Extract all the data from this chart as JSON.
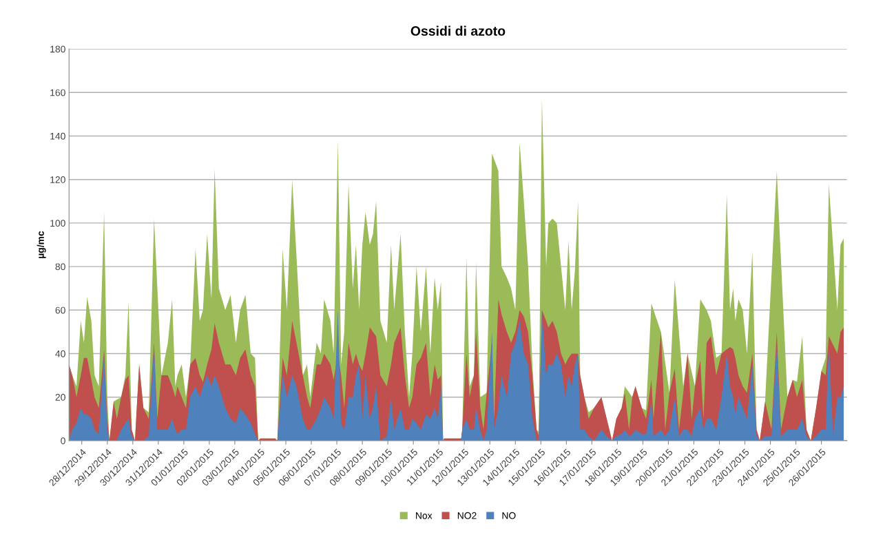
{
  "chart_data": {
    "type": "area",
    "title": "Ossidi di azoto",
    "ylabel": "µg/mc",
    "x": [
      "2014-12-28T00:00",
      "2014-12-28T03:00",
      "2014-12-28T07:00",
      "2014-12-28T11:00",
      "2014-12-28T14:00",
      "2014-12-28T17:00",
      "2014-12-28T21:00",
      "2014-12-29T00:00",
      "2014-12-29T04:00",
      "2014-12-29T09:00",
      "2014-12-29T12:00",
      "2014-12-29T14:00",
      "2014-12-29T18:00",
      "2014-12-29T21:00",
      "2014-12-30T01:00",
      "2014-12-30T05:00",
      "2014-12-30T08:00",
      "2014-12-30T11:00",
      "2014-12-30T14:00",
      "2014-12-30T18:00",
      "2014-12-30T22:00",
      "2014-12-31T03:00",
      "2014-12-31T08:00",
      "2014-12-31T11:00",
      "2014-12-31T15:00",
      "2014-12-31T21:00",
      "2015-01-01T01:00",
      "2015-01-01T04:00",
      "2015-01-01T06:00",
      "2015-01-01T10:00",
      "2015-01-01T14:00",
      "2015-01-01T18:00",
      "2015-01-01T23:00",
      "2015-01-02T03:00",
      "2015-01-02T06:00",
      "2015-01-02T10:00",
      "2015-01-02T14:00",
      "2015-01-02T17:00",
      "2015-01-02T21:00",
      "2015-01-03T03:00",
      "2015-01-03T08:00",
      "2015-01-03T13:00",
      "2015-01-03T17:00",
      "2015-01-03T22:00",
      "2015-01-04T03:00",
      "2015-01-04T07:00",
      "2015-01-04T10:00",
      "2015-01-04T12:00",
      "2015-01-05T02:00",
      "2015-01-05T04:00",
      "2015-01-05T09:00",
      "2015-01-05T13:00",
      "2015-01-05T18:00",
      "2015-01-05T22:00",
      "2015-01-06T04:00",
      "2015-01-06T08:00",
      "2015-01-06T11:00",
      "2015-01-06T17:00",
      "2015-01-06T21:00",
      "2015-01-07T00:00",
      "2015-01-07T06:00",
      "2015-01-07T09:00",
      "2015-01-07T13:00",
      "2015-01-07T16:00",
      "2015-01-07T19:00",
      "2015-01-07T23:00",
      "2015-01-08T03:00",
      "2015-01-08T06:00",
      "2015-01-08T09:00",
      "2015-01-08T12:00",
      "2015-01-08T15:00",
      "2015-01-08T19:00",
      "2015-01-08T22:00",
      "2015-01-09T01:00",
      "2015-01-09T05:00",
      "2015-01-09T11:00",
      "2015-01-09T15:00",
      "2015-01-09T18:00",
      "2015-01-10T00:00",
      "2015-01-10T04:00",
      "2015-01-10T08:00",
      "2015-01-10T11:00",
      "2015-01-10T15:00",
      "2015-01-10T19:00",
      "2015-01-11T00:00",
      "2015-01-11T04:00",
      "2015-01-11T08:00",
      "2015-01-11T11:00",
      "2015-01-11T14:00",
      "2015-01-11T16:00",
      "2015-01-11T17:00",
      "2015-01-12T09:00",
      "2015-01-12T10:00",
      "2015-01-12T14:00",
      "2015-01-12T17:00",
      "2015-01-12T21:00",
      "2015-01-12T23:00",
      "2015-01-13T03:00",
      "2015-01-13T06:00",
      "2015-01-13T09:00",
      "2015-01-13T14:00",
      "2015-01-13T16:00",
      "2015-01-13T20:00",
      "2015-01-13T23:00",
      "2015-01-14T04:00",
      "2015-01-14T08:00",
      "2015-01-14T12:00",
      "2015-01-14T16:00",
      "2015-01-14T20:00",
      "2015-01-15T00:00",
      "2015-01-15T04:00",
      "2015-01-15T08:00",
      "2015-01-15T10:00",
      "2015-01-15T13:00",
      "2015-01-15T17:00",
      "2015-01-15T19:00",
      "2015-01-15T23:00",
      "2015-01-16T03:00",
      "2015-01-16T07:00",
      "2015-01-16T11:00",
      "2015-01-16T14:00",
      "2015-01-16T17:00",
      "2015-01-16T20:00",
      "2015-01-16T23:00",
      "2015-01-17T01:00",
      "2015-01-17T05:00",
      "2015-01-17T09:00",
      "2015-01-17T14:00",
      "2015-01-17T21:00",
      "2015-01-18T02:00",
      "2015-01-18T07:00",
      "2015-01-18T11:00",
      "2015-01-18T16:00",
      "2015-01-18T19:00",
      "2015-01-18T23:00",
      "2015-01-19T02:00",
      "2015-01-19T05:00",
      "2015-01-19T11:00",
      "2015-01-19T15:00",
      "2015-01-19T20:00",
      "2015-01-19T22:00",
      "2015-01-20T05:00",
      "2015-01-20T09:00",
      "2015-01-20T13:00",
      "2015-01-20T18:00",
      "2015-01-20T22:00",
      "2015-01-21T02:00",
      "2015-01-21T06:00",
      "2015-01-21T10:00",
      "2015-01-21T13:00",
      "2015-01-21T18:00",
      "2015-01-21T21:00",
      "2015-01-22T00:00",
      "2015-01-22T04:00",
      "2015-01-22T09:00",
      "2015-01-22T14:00",
      "2015-01-22T19:00",
      "2015-01-22T22:00",
      "2015-01-23T01:00",
      "2015-01-23T03:00",
      "2015-01-23T06:00",
      "2015-01-23T10:00",
      "2015-01-23T14:00",
      "2015-01-23T19:00",
      "2015-01-23T23:00",
      "2015-01-24T02:00",
      "2015-01-24T07:00",
      "2015-01-24T13:00",
      "2015-01-24T18:00",
      "2015-01-24T22:00",
      "2015-01-25T04:00",
      "2015-01-25T09:00",
      "2015-01-25T13:00",
      "2015-01-25T18:00",
      "2015-01-25T22:00",
      "2015-01-26T02:00",
      "2015-01-26T07:00",
      "2015-01-26T12:00",
      "2015-01-26T16:00",
      "2015-01-26T19:00",
      "2015-01-26T23:00",
      "2015-01-27T03:00",
      "2015-01-27T06:00",
      "2015-01-27T09:00"
    ],
    "series": [
      {
        "name": "Nox",
        "color": "#9bbb59",
        "values": [
          35,
          30,
          25,
          55,
          45,
          66,
          55,
          30,
          25,
          105,
          20,
          0,
          18,
          null,
          20,
          30,
          64,
          5,
          0,
          35,
          15,
          13,
          102,
          null,
          30,
          45,
          65,
          25,
          30,
          35,
          20,
          35,
          88,
          55,
          60,
          95,
          65,
          125,
          70,
          60,
          67,
          45,
          60,
          67,
          40,
          38,
          0,
          1,
          1,
          0,
          88,
          60,
          120,
          85,
          30,
          35,
          20,
          45,
          40,
          65,
          55,
          40,
          138,
          35,
          50,
          118,
          70,
          90,
          60,
          90,
          105,
          90,
          95,
          110,
          55,
          45,
          90,
          60,
          95,
          50,
          20,
          40,
          80,
          50,
          80,
          40,
          75,
          60,
          73,
          0,
          1,
          1,
          5,
          84,
          25,
          30,
          82,
          20,
          null,
          22,
          132,
          null,
          124,
          80,
          75,
          70,
          60,
          137,
          110,
          80,
          35,
          5,
          4,
          157,
          80,
          100,
          102,
          100,
          80,
          60,
          92,
          60,
          78,
          110,
          30,
          20,
          13,
          15,
          20,
          10,
          0,
          10,
          15,
          25,
          null,
          20,
          25,
          15,
          14,
          63,
          null,
          50,
          null,
          22,
          74,
          null,
          25,
          40,
          null,
          25,
          65,
          null,
          60,
          55,
          38,
          40,
          113,
          60,
          70,
          55,
          65,
          60,
          40,
          87,
          5,
          0,
          18,
          null,
          124,
          null,
          20,
          28,
          27,
          48,
          5,
          0,
          15,
          32,
          38,
          118,
          null,
          60,
          90,
          93
        ]
      },
      {
        "name": "NO2",
        "color": "#c0504d",
        "values": [
          35,
          30,
          20,
          30,
          38,
          38,
          28,
          20,
          15,
          42,
          10,
          0,
          18,
          10,
          20,
          28,
          30,
          5,
          0,
          35,
          15,
          10,
          45,
          10,
          30,
          30,
          25,
          20,
          25,
          20,
          15,
          35,
          38,
          30,
          27,
          35,
          42,
          54,
          45,
          35,
          35,
          30,
          38,
          42,
          30,
          25,
          0,
          1,
          1,
          0,
          38,
          30,
          55,
          45,
          30,
          20,
          15,
          35,
          35,
          40,
          35,
          28,
          40,
          30,
          15,
          45,
          35,
          40,
          35,
          32,
          40,
          52,
          50,
          48,
          30,
          25,
          35,
          45,
          52,
          30,
          15,
          20,
          35,
          38,
          45,
          20,
          35,
          28,
          30,
          0,
          1,
          1,
          5,
          40,
          20,
          30,
          50,
          15,
          5,
          22,
          45,
          10,
          65,
          58,
          50,
          45,
          50,
          60,
          57,
          50,
          30,
          5,
          2,
          60,
          55,
          52,
          55,
          50,
          40,
          35,
          38,
          40,
          40,
          40,
          30,
          20,
          10,
          15,
          20,
          10,
          0,
          10,
          15,
          22,
          5,
          20,
          25,
          15,
          10,
          28,
          10,
          50,
          5,
          22,
          33,
          5,
          22,
          40,
          10,
          25,
          37,
          10,
          45,
          48,
          30,
          40,
          42,
          43,
          42,
          38,
          30,
          25,
          22,
          40,
          5,
          0,
          18,
          5,
          50,
          5,
          20,
          28,
          20,
          28,
          5,
          0,
          15,
          32,
          30,
          48,
          null,
          40,
          50,
          52
        ]
      },
      {
        "name": "NO",
        "color": "#4f81bd",
        "values": [
          0,
          5,
          8,
          15,
          12,
          12,
          10,
          5,
          3,
          40,
          5,
          0,
          0,
          0,
          5,
          8,
          10,
          2,
          0,
          0,
          0,
          2,
          44,
          5,
          5,
          5,
          10,
          5,
          3,
          5,
          5,
          20,
          25,
          20,
          25,
          30,
          25,
          30,
          25,
          15,
          10,
          8,
          15,
          12,
          8,
          3,
          0,
          0,
          0,
          0,
          30,
          20,
          30,
          25,
          10,
          5,
          5,
          10,
          15,
          20,
          15,
          10,
          60,
          8,
          5,
          20,
          20,
          30,
          35,
          10,
          30,
          10,
          15,
          25,
          0,
          2,
          20,
          5,
          15,
          5,
          5,
          10,
          8,
          5,
          12,
          10,
          15,
          10,
          25,
          0,
          0,
          0,
          5,
          10,
          5,
          5,
          15,
          5,
          0,
          5,
          50,
          5,
          15,
          30,
          20,
          40,
          45,
          55,
          40,
          35,
          10,
          0,
          0,
          60,
          30,
          35,
          35,
          40,
          35,
          20,
          30,
          25,
          35,
          40,
          5,
          5,
          2,
          0,
          5,
          2,
          0,
          2,
          3,
          5,
          2,
          3,
          5,
          3,
          3,
          18,
          2,
          5,
          2,
          5,
          20,
          2,
          5,
          5,
          2,
          10,
          15,
          5,
          10,
          10,
          5,
          20,
          40,
          25,
          20,
          12,
          20,
          15,
          10,
          35,
          2,
          0,
          2,
          2,
          45,
          2,
          5,
          5,
          5,
          10,
          2,
          0,
          2,
          5,
          5,
          45,
          2,
          20,
          20,
          25
        ]
      }
    ],
    "xlim": [
      "2014-12-28T00:00",
      "2015-01-27T12:00"
    ],
    "xticks": [
      {
        "value": "2014-12-28T12:00",
        "label": "28/12/2014"
      },
      {
        "value": "2014-12-29T12:00",
        "label": "29/12/2014"
      },
      {
        "value": "2014-12-30T12:00",
        "label": "30/12/2014"
      },
      {
        "value": "2014-12-31T12:00",
        "label": "31/12/2014"
      },
      {
        "value": "2015-01-01T12:00",
        "label": "01/01/2015"
      },
      {
        "value": "2015-01-02T12:00",
        "label": "02/01/2015"
      },
      {
        "value": "2015-01-03T12:00",
        "label": "03/01/2015"
      },
      {
        "value": "2015-01-04T12:00",
        "label": "04/01/2015"
      },
      {
        "value": "2015-01-05T12:00",
        "label": "05/01/2015"
      },
      {
        "value": "2015-01-06T12:00",
        "label": "06/01/2015"
      },
      {
        "value": "2015-01-07T12:00",
        "label": "07/01/2015"
      },
      {
        "value": "2015-01-08T12:00",
        "label": "08/01/2015"
      },
      {
        "value": "2015-01-09T12:00",
        "label": "09/01/2015"
      },
      {
        "value": "2015-01-10T12:00",
        "label": "10/01/2015"
      },
      {
        "value": "2015-01-11T12:00",
        "label": "11/01/2015"
      },
      {
        "value": "2015-01-12T12:00",
        "label": "12/01/2015"
      },
      {
        "value": "2015-01-13T12:00",
        "label": "13/01/2015"
      },
      {
        "value": "2015-01-14T12:00",
        "label": "14/01/2015"
      },
      {
        "value": "2015-01-15T12:00",
        "label": "15/01/2015"
      },
      {
        "value": "2015-01-16T12:00",
        "label": "16/01/2015"
      },
      {
        "value": "2015-01-17T12:00",
        "label": "17/01/2015"
      },
      {
        "value": "2015-01-18T12:00",
        "label": "18/01/2015"
      },
      {
        "value": "2015-01-19T12:00",
        "label": "19/01/2015"
      },
      {
        "value": "2015-01-20T12:00",
        "label": "20/01/2015"
      },
      {
        "value": "2015-01-21T12:00",
        "label": "21/01/2015"
      },
      {
        "value": "2015-01-22T12:00",
        "label": "22/01/2015"
      },
      {
        "value": "2015-01-23T12:00",
        "label": "23/01/2015"
      },
      {
        "value": "2015-01-24T12:00",
        "label": "24/01/2015"
      },
      {
        "value": "2015-01-25T12:00",
        "label": "25/01/2015"
      },
      {
        "value": "2015-01-26T12:00",
        "label": "26/01/2015"
      }
    ],
    "ylim": [
      0,
      180
    ],
    "yticks": [
      0,
      20,
      40,
      60,
      80,
      100,
      120,
      140,
      160,
      180
    ],
    "grid": "y",
    "legend": "bottom"
  }
}
